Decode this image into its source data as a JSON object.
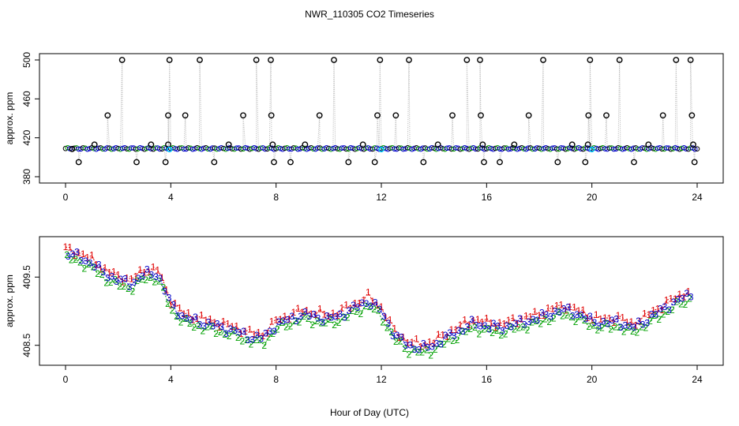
{
  "title": "NWR_110305  CO2 Timeseries",
  "xlabel": "Hour of Day (UTC)",
  "colors": {
    "frame": "#000000",
    "connector": "#b4b4b4",
    "series1": "#e00000",
    "series2": "#00a000",
    "series3": "#0000c8",
    "calibration": "#00c8ff"
  },
  "chart_data": [
    {
      "type": "scatter",
      "name": "top",
      "title": "NWR_110305  CO2 Timeseries",
      "xlabel": "",
      "ylabel": "approx. ppm",
      "xlim": [
        0,
        24
      ],
      "ylim": [
        380,
        500
      ],
      "xticks": [
        0,
        4,
        8,
        12,
        16,
        20,
        24
      ],
      "yticks": [
        380,
        420,
        460,
        500
      ],
      "xtick_labels": [
        "0",
        "4",
        "8",
        "12",
        "16",
        "20",
        "24"
      ],
      "ytick_labels": [
        "380",
        "420",
        "460",
        "500"
      ],
      "baseline_ppm": 409,
      "baseline_points_per_hour": 12,
      "outliers": [
        {
          "x": 0.25,
          "y": 408.5
        },
        {
          "x": 0.5,
          "y": 395
        },
        {
          "x": 1.1,
          "y": 413
        },
        {
          "x": 1.6,
          "y": 443
        },
        {
          "x": 2.15,
          "y": 500
        },
        {
          "x": 2.7,
          "y": 395
        },
        {
          "x": 3.25,
          "y": 413
        },
        {
          "x": 3.8,
          "y": 395
        },
        {
          "x": 3.9,
          "y": 413
        },
        {
          "x": 3.9,
          "y": 443
        },
        {
          "x": 3.95,
          "y": 500
        },
        {
          "x": 4.55,
          "y": 443
        },
        {
          "x": 5.1,
          "y": 500
        },
        {
          "x": 5.65,
          "y": 395
        },
        {
          "x": 6.2,
          "y": 413
        },
        {
          "x": 6.75,
          "y": 443
        },
        {
          "x": 7.25,
          "y": 500
        },
        {
          "x": 7.8,
          "y": 500
        },
        {
          "x": 7.82,
          "y": 443
        },
        {
          "x": 7.87,
          "y": 413
        },
        {
          "x": 7.92,
          "y": 395
        },
        {
          "x": 8.55,
          "y": 395
        },
        {
          "x": 9.1,
          "y": 413
        },
        {
          "x": 9.65,
          "y": 443
        },
        {
          "x": 10.2,
          "y": 500
        },
        {
          "x": 10.75,
          "y": 395
        },
        {
          "x": 11.3,
          "y": 413
        },
        {
          "x": 11.75,
          "y": 395
        },
        {
          "x": 11.85,
          "y": 443
        },
        {
          "x": 11.95,
          "y": 500
        },
        {
          "x": 12.55,
          "y": 443
        },
        {
          "x": 13.05,
          "y": 500
        },
        {
          "x": 13.6,
          "y": 395
        },
        {
          "x": 14.15,
          "y": 413
        },
        {
          "x": 14.7,
          "y": 443
        },
        {
          "x": 15.25,
          "y": 500
        },
        {
          "x": 15.75,
          "y": 500
        },
        {
          "x": 15.78,
          "y": 443
        },
        {
          "x": 15.85,
          "y": 413
        },
        {
          "x": 15.9,
          "y": 395
        },
        {
          "x": 16.5,
          "y": 395
        },
        {
          "x": 17.05,
          "y": 413
        },
        {
          "x": 17.6,
          "y": 443
        },
        {
          "x": 18.15,
          "y": 500
        },
        {
          "x": 18.7,
          "y": 395
        },
        {
          "x": 19.25,
          "y": 413
        },
        {
          "x": 19.75,
          "y": 395
        },
        {
          "x": 19.85,
          "y": 413
        },
        {
          "x": 19.87,
          "y": 443
        },
        {
          "x": 19.93,
          "y": 500
        },
        {
          "x": 20.55,
          "y": 443
        },
        {
          "x": 21.05,
          "y": 500
        },
        {
          "x": 21.6,
          "y": 395
        },
        {
          "x": 22.15,
          "y": 413
        },
        {
          "x": 22.7,
          "y": 443
        },
        {
          "x": 23.2,
          "y": 500
        },
        {
          "x": 23.75,
          "y": 500
        },
        {
          "x": 23.8,
          "y": 443
        },
        {
          "x": 23.85,
          "y": 413
        },
        {
          "x": 23.9,
          "y": 395
        }
      ],
      "calibration_points": [
        {
          "x": 3.95,
          "y": 408
        },
        {
          "x": 12.0,
          "y": 408
        },
        {
          "x": 20.0,
          "y": 408
        }
      ]
    },
    {
      "type": "line",
      "name": "bottom",
      "title": "",
      "xlabel": "Hour of Day (UTC)",
      "ylabel": "approx. ppm",
      "xlim": [
        0,
        24
      ],
      "ylim": [
        408.3,
        410.0
      ],
      "xticks": [
        0,
        4,
        8,
        12,
        16,
        20,
        24
      ],
      "yticks": [
        408.5,
        409.5
      ],
      "xtick_labels": [
        "0",
        "4",
        "8",
        "12",
        "16",
        "20",
        "24"
      ],
      "ytick_labels": [
        "408.5",
        "409.5"
      ],
      "series_labels": [
        "1",
        "2",
        "3"
      ],
      "trend": {
        "x": [
          0,
          0.5,
          1.0,
          1.5,
          2.0,
          2.5,
          3.0,
          3.5,
          4.0,
          4.5,
          5.0,
          5.5,
          6.0,
          6.5,
          7.0,
          7.5,
          8.0,
          8.5,
          9.0,
          9.5,
          10.0,
          10.5,
          11.0,
          11.5,
          12.0,
          12.5,
          13.0,
          13.5,
          14.0,
          14.5,
          15.0,
          15.5,
          16.0,
          16.5,
          17.0,
          17.5,
          18.0,
          18.5,
          19.0,
          19.5,
          20.0,
          20.5,
          21.0,
          21.5,
          22.0,
          22.5,
          23.0,
          23.5,
          24.0
        ],
        "y": [
          409.85,
          409.8,
          409.7,
          409.55,
          409.45,
          409.4,
          409.55,
          409.55,
          409.1,
          408.9,
          408.85,
          408.8,
          408.75,
          408.7,
          408.62,
          408.6,
          408.8,
          408.88,
          408.95,
          408.92,
          408.88,
          408.95,
          409.05,
          409.15,
          409.0,
          408.65,
          408.5,
          408.45,
          408.5,
          408.62,
          408.72,
          408.82,
          408.78,
          408.75,
          408.8,
          408.85,
          408.9,
          408.98,
          409.02,
          408.95,
          408.85,
          408.82,
          408.85,
          408.75,
          408.85,
          408.98,
          409.1,
          409.2,
          409.3
        ]
      },
      "offsets": {
        "1": 0.06,
        "2": -0.07,
        "3": 0.0
      },
      "points_per_hour": 6,
      "data_end_x": 23.7
    }
  ]
}
